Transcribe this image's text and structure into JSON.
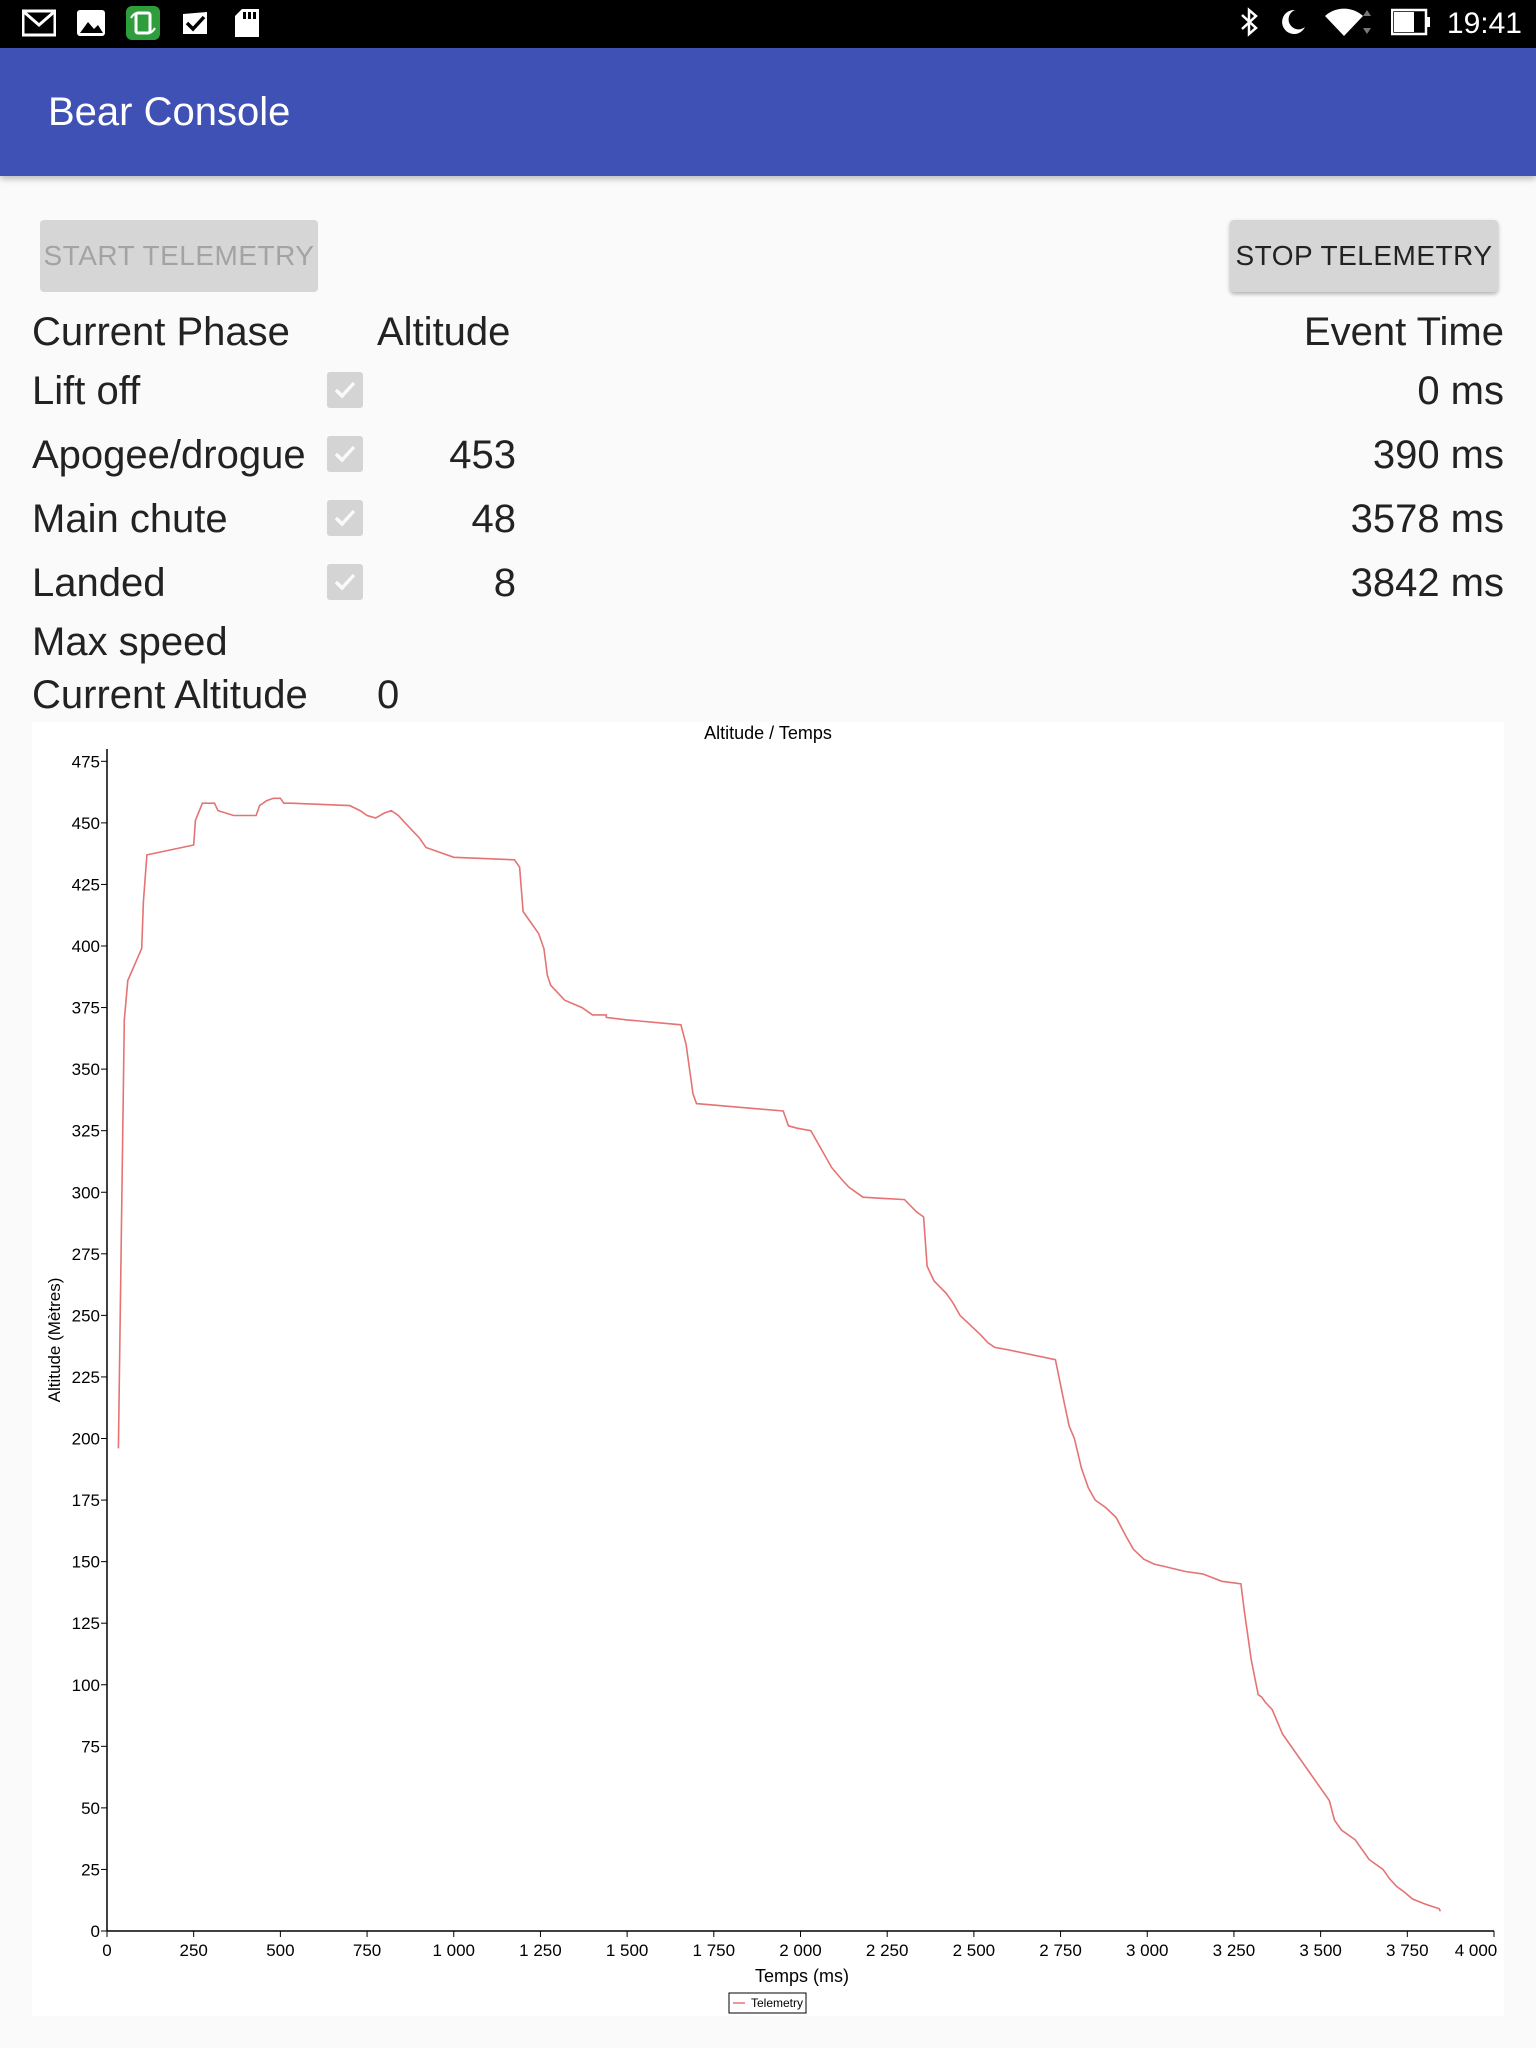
{
  "status_bar": {
    "time": "19:41",
    "left_icons": [
      "gmail-icon",
      "gallery-icon",
      "app-icon",
      "checkmark-app-icon",
      "sd-card-icon"
    ],
    "right_icons": [
      "bluetooth-icon",
      "moon-icon",
      "wifi-icon",
      "battery-icon"
    ]
  },
  "app_bar": {
    "title": "Bear Console"
  },
  "buttons": {
    "start": "START TELEMETRY",
    "stop": "STOP TELEMETRY"
  },
  "headers": {
    "phase": "Current Phase",
    "altitude": "Altitude",
    "event_time": "Event Time"
  },
  "phases": [
    {
      "label": "Lift off",
      "checked": true,
      "altitude": "",
      "time": "0 ms"
    },
    {
      "label": "Apogee/drogue",
      "checked": true,
      "altitude": "453",
      "time": "390 ms"
    },
    {
      "label": "Main chute",
      "checked": true,
      "altitude": "48",
      "time": "3578 ms"
    },
    {
      "label": "Landed",
      "checked": true,
      "altitude": "8",
      "time": "3842 ms"
    }
  ],
  "max_speed": {
    "label": "Max speed",
    "value": ""
  },
  "current_altitude": {
    "label": "Current Altitude",
    "value": "0"
  },
  "chart_data": {
    "type": "line",
    "title": "Altitude / Temps",
    "xlabel": "Temps (ms)",
    "ylabel": "Altitude (Mètres)",
    "xlim": [
      0,
      4000
    ],
    "ylim": [
      0,
      480
    ],
    "xticks": [
      0,
      250,
      500,
      750,
      1000,
      1250,
      1500,
      1750,
      2000,
      2250,
      2500,
      2750,
      3000,
      3250,
      3500,
      3750,
      4000
    ],
    "xtick_labels": [
      "0",
      "250",
      "500",
      "750",
      "1 000",
      "1 250",
      "1 500",
      "1 750",
      "2 000",
      "2 250",
      "2 500",
      "2 750",
      "3 000",
      "3 250",
      "3 500",
      "3 750",
      "4 000"
    ],
    "yticks": [
      0,
      25,
      50,
      75,
      100,
      125,
      150,
      175,
      200,
      225,
      250,
      275,
      300,
      325,
      350,
      375,
      400,
      425,
      450,
      475
    ],
    "grid": false,
    "legend": "bottom-center",
    "color": "#e57373",
    "series": [
      {
        "name": "Telemetry",
        "x": [
          33,
          40,
          50,
          60,
          100,
          105,
          115,
          250,
          255,
          275,
          290,
          310,
          320,
          365,
          430,
          440,
          460,
          480,
          500,
          505,
          510,
          530,
          700,
          730,
          750,
          775,
          800,
          820,
          840,
          860,
          880,
          900,
          920,
          1000,
          1175,
          1190,
          1200,
          1210,
          1245,
          1260,
          1270,
          1280,
          1300,
          1320,
          1370,
          1400,
          1440,
          1440,
          1500,
          1655,
          1670,
          1690,
          1700,
          1950,
          1965,
          1990,
          2030,
          2050,
          2090,
          2120,
          2140,
          2170,
          2180,
          2300,
          2335,
          2355,
          2365,
          2385,
          2420,
          2440,
          2460,
          2490,
          2520,
          2540,
          2560,
          2600,
          2735,
          2760,
          2775,
          2790,
          2810,
          2830,
          2850,
          2880,
          2910,
          2940,
          2960,
          2990,
          3020,
          3050,
          3080,
          3110,
          3160,
          3215,
          3270,
          3280,
          3300,
          3320,
          3330,
          3340,
          3360,
          3375,
          3390,
          3510,
          3525,
          3540,
          3560,
          3600,
          3620,
          3640,
          3660,
          3680,
          3700,
          3720,
          3740,
          3765,
          3800,
          3842,
          3845
        ],
        "y": [
          196,
          270,
          370,
          386,
          399,
          418,
          437,
          441,
          451,
          458,
          458,
          458,
          455,
          453,
          453,
          457,
          459,
          460,
          460,
          459,
          458,
          458,
          457,
          455,
          453,
          452,
          454,
          455,
          453,
          450,
          447,
          444,
          440,
          436,
          435,
          432,
          414,
          412,
          405,
          399,
          388,
          384,
          381,
          378,
          375,
          372,
          372,
          371,
          370,
          368,
          360,
          340,
          336,
          333,
          327,
          326,
          325,
          320,
          310,
          305,
          302,
          299,
          298,
          297,
          292,
          290,
          270,
          264,
          259,
          255,
          250,
          246,
          242,
          239,
          237,
          236,
          232,
          215,
          205,
          200,
          188,
          180,
          175,
          172,
          168,
          160,
          155,
          151,
          149,
          148,
          147,
          146,
          145,
          142,
          141,
          130,
          110,
          96,
          95,
          93,
          90,
          85,
          80,
          56,
          53,
          45,
          41,
          37,
          33,
          29,
          27,
          25,
          21,
          18,
          16,
          13,
          11,
          9,
          8
        ]
      }
    ]
  }
}
